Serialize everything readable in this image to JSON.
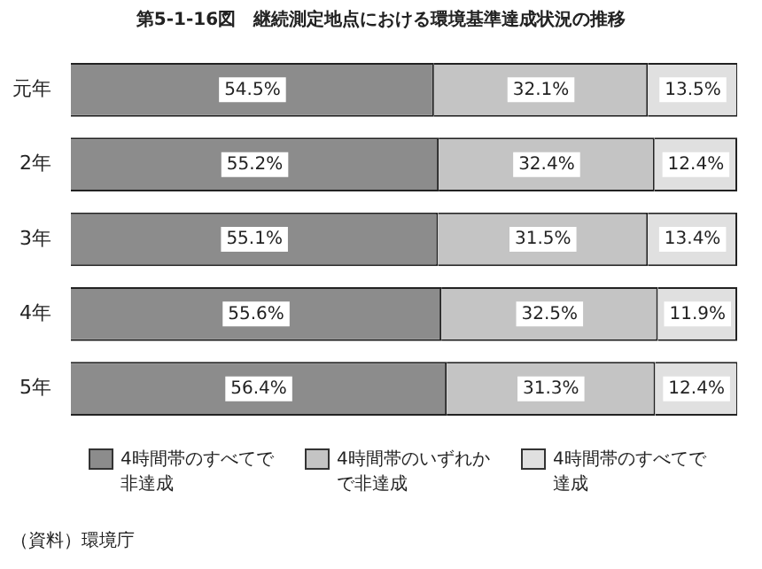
{
  "chart_data": {
    "type": "bar",
    "orientation": "horizontal",
    "stacked": true,
    "title": "第5-1-16図　継続測定地点における環境基準達成状況の推移",
    "categories": [
      "元年",
      "2年",
      "3年",
      "4年",
      "5年"
    ],
    "series": [
      {
        "name": "4時間帯のすべてで非達成",
        "color": "#8c8c8c",
        "values": [
          54.5,
          55.2,
          55.1,
          55.6,
          56.4
        ],
        "value_labels": [
          "54.5%",
          "55.2%",
          "55.1%",
          "55.6%",
          "56.4%"
        ]
      },
      {
        "name": "4時間帯のいずれかで非達成",
        "color": "#c4c4c4",
        "values": [
          32.1,
          32.4,
          31.5,
          32.5,
          31.3
        ],
        "value_labels": [
          "32.1%",
          "32.4%",
          "31.5%",
          "32.5%",
          "31.3%"
        ]
      },
      {
        "name": "4時間帯のすべてで達成",
        "color": "#e0e0e0",
        "values": [
          13.5,
          12.4,
          13.4,
          11.9,
          12.4
        ],
        "value_labels": [
          "13.5%",
          "12.4%",
          "13.4%",
          "11.9%",
          "12.4%"
        ]
      }
    ],
    "xlim": [
      0,
      100
    ],
    "tick_labels": "y",
    "legend": "bottom",
    "annotations": [
      "（資料）環境庁"
    ]
  }
}
